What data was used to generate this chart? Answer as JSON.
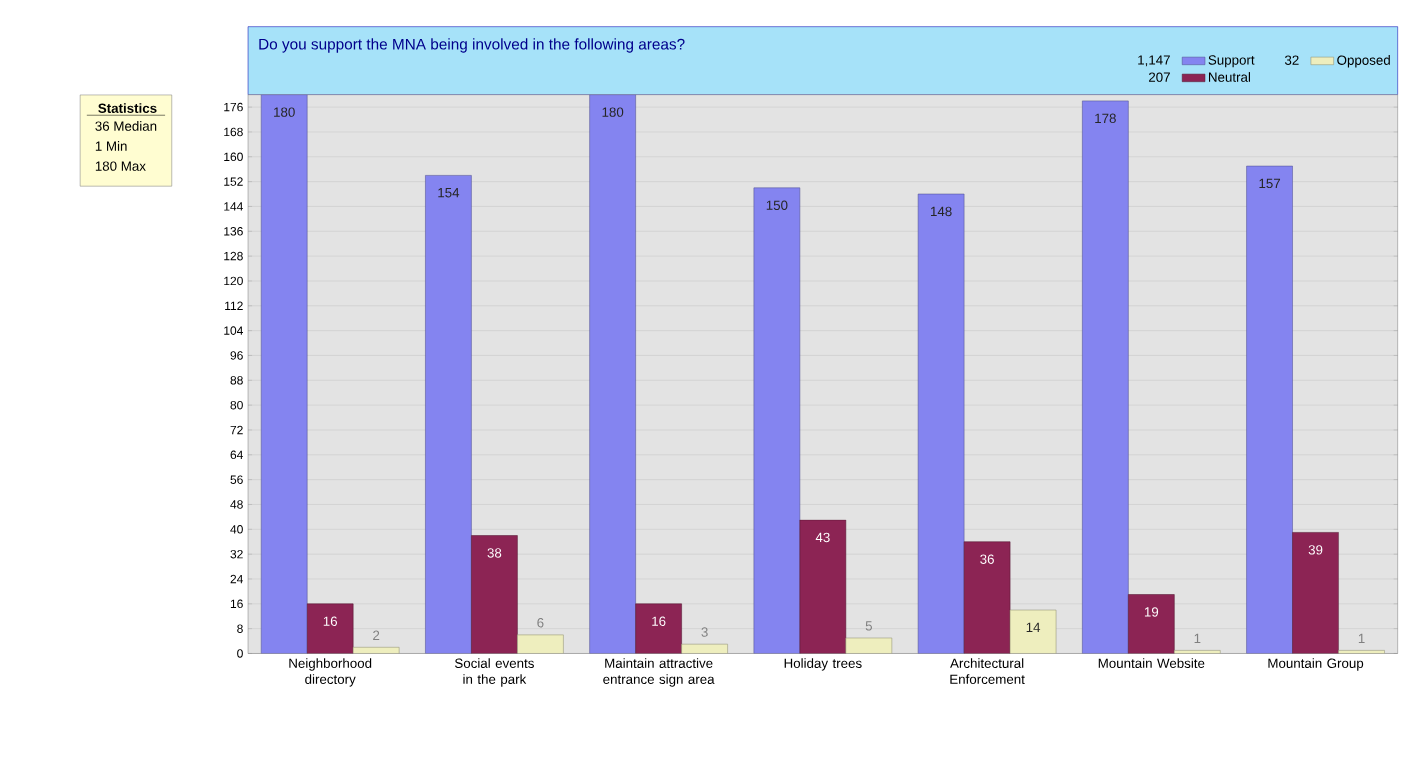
{
  "chart_data": {
    "type": "bar",
    "title": "Do you support the MNA being involved in the following areas?",
    "categories": [
      "Neighborhood directory",
      "Social events in the park",
      "Maintain attractive entrance sign area",
      "Holiday trees",
      "Architectural Enforcement",
      "Mountain Website",
      "Mountain Group"
    ],
    "series": [
      {
        "name": "Support",
        "color": "#8484f0",
        "values": [
          180,
          154,
          180,
          150,
          148,
          178,
          157
        ]
      },
      {
        "name": "Neutral",
        "color": "#8c2454",
        "values": [
          16,
          38,
          16,
          43,
          36,
          19,
          39
        ]
      },
      {
        "name": "Opposed",
        "color": "#eeeebe",
        "values": [
          2,
          6,
          3,
          5,
          14,
          1,
          1
        ]
      }
    ],
    "ylim": [
      0,
      180
    ],
    "yticks": [
      0,
      8,
      16,
      24,
      32,
      40,
      48,
      56,
      64,
      72,
      80,
      88,
      96,
      104,
      112,
      120,
      128,
      136,
      144,
      152,
      160,
      168,
      176
    ],
    "grid": "y",
    "legend": "top right",
    "data_labels": true,
    "annotations": [
      "Statistics",
      "36 Median",
      "1 Min",
      "180 Max",
      "1,147",
      "207",
      "32"
    ]
  }
}
